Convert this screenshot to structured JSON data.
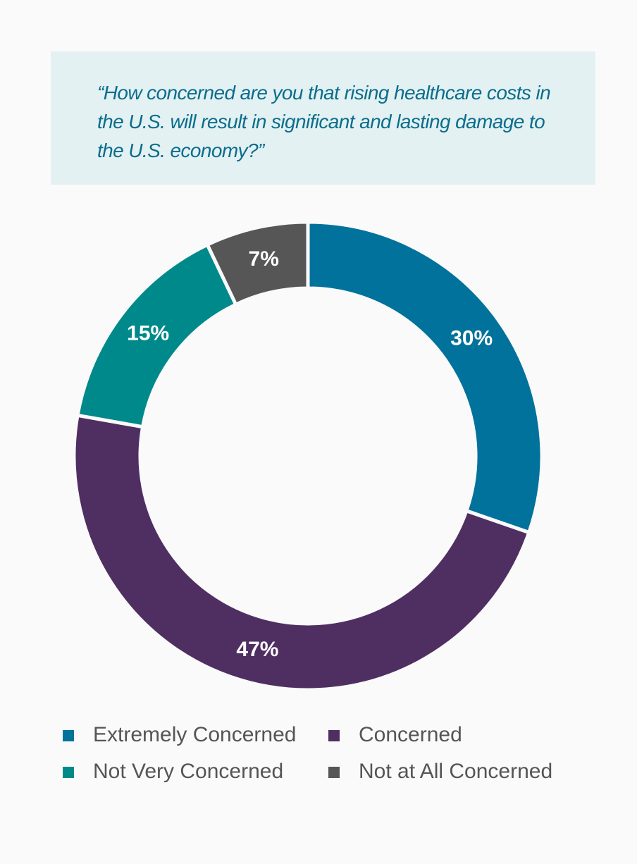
{
  "chart_data": {
    "type": "donut",
    "title": "“How concerned are you that rising healthcare costs in the U.S. will result in significant and lasting damage to the U.S. economy?”",
    "categories": [
      "Extremely Concerned",
      "Concerned",
      "Not Very Concerned",
      "Not at All Concerned"
    ],
    "values": [
      30,
      47,
      15,
      7
    ],
    "value_labels": [
      "30%",
      "47%",
      "15%",
      "7%"
    ],
    "colors": [
      "#00729b",
      "#4f2e62",
      "#00898b",
      "#555655"
    ]
  }
}
